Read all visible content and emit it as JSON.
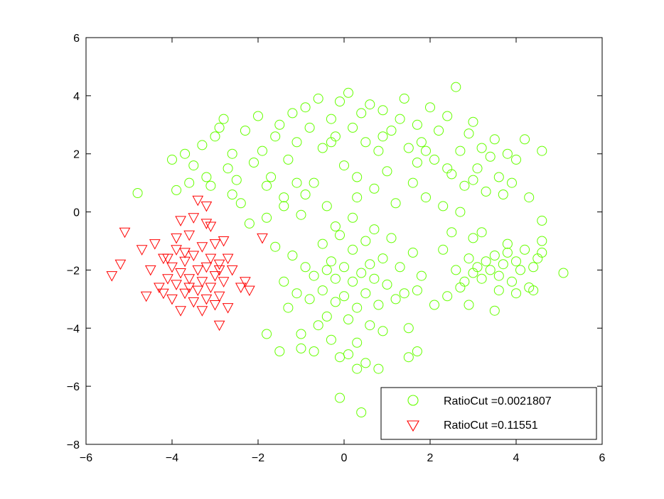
{
  "chart_data": {
    "type": "scatter",
    "title": "",
    "xlabel": "",
    "ylabel": "",
    "xlim": [
      -6,
      6
    ],
    "ylim": [
      -8,
      6
    ],
    "xticks": [
      -6,
      -4,
      -2,
      0,
      2,
      4,
      6
    ],
    "yticks": [
      -8,
      -6,
      -4,
      -2,
      0,
      2,
      4,
      6
    ],
    "xtick_labels": [
      "−6",
      "−4",
      "−2",
      "0",
      "2",
      "4",
      "6"
    ],
    "ytick_labels": [
      "−8",
      "−6",
      "−4",
      "−2",
      "0",
      "2",
      "4",
      "6"
    ],
    "grid": false,
    "legend_position": "bottom-right",
    "series": [
      {
        "name": "RatioCut =0.0021807",
        "marker": "circle",
        "color": "#66ff00",
        "points": [
          [
            -4.0,
            1.8
          ],
          [
            -4.8,
            0.65
          ],
          [
            -3.9,
            0.75
          ],
          [
            -3.7,
            2.0
          ],
          [
            -3.5,
            1.6
          ],
          [
            -3.3,
            2.3
          ],
          [
            -3.2,
            1.2
          ],
          [
            -3.0,
            2.6
          ],
          [
            -2.8,
            3.2
          ],
          [
            -2.6,
            2.0
          ],
          [
            -2.5,
            1.1
          ],
          [
            -2.4,
            0.3
          ],
          [
            -2.3,
            2.8
          ],
          [
            -2.2,
            -0.4
          ],
          [
            -2.1,
            1.7
          ],
          [
            -2.0,
            3.3
          ],
          [
            -1.9,
            2.1
          ],
          [
            -1.8,
            -0.2
          ],
          [
            -1.7,
            1.2
          ],
          [
            -1.6,
            2.6
          ],
          [
            -1.5,
            3.0
          ],
          [
            -1.4,
            0.5
          ],
          [
            -1.3,
            1.8
          ],
          [
            -1.2,
            3.4
          ],
          [
            -1.1,
            2.4
          ],
          [
            -1.0,
            -0.1
          ],
          [
            -0.9,
            3.6
          ],
          [
            -0.8,
            2.9
          ],
          [
            -0.7,
            1.0
          ],
          [
            -0.6,
            3.9
          ],
          [
            -0.5,
            2.2
          ],
          [
            -0.4,
            0.2
          ],
          [
            -0.3,
            3.2
          ],
          [
            -0.2,
            2.6
          ],
          [
            -0.1,
            3.8
          ],
          [
            0.0,
            1.6
          ],
          [
            0.1,
            4.1
          ],
          [
            0.2,
            2.9
          ],
          [
            0.3,
            0.5
          ],
          [
            0.4,
            3.4
          ],
          [
            0.5,
            2.4
          ],
          [
            0.6,
            3.7
          ],
          [
            0.7,
            0.8
          ],
          [
            0.8,
            2.1
          ],
          [
            0.9,
            3.5
          ],
          [
            1.0,
            1.4
          ],
          [
            1.1,
            2.8
          ],
          [
            1.2,
            0.3
          ],
          [
            1.3,
            3.2
          ],
          [
            1.4,
            3.9
          ],
          [
            1.5,
            2.2
          ],
          [
            1.6,
            1.0
          ],
          [
            1.7,
            3.0
          ],
          [
            1.8,
            2.4
          ],
          [
            1.9,
            0.5
          ],
          [
            2.0,
            3.6
          ],
          [
            2.1,
            1.8
          ],
          [
            2.2,
            2.8
          ],
          [
            2.3,
            0.2
          ],
          [
            2.4,
            3.3
          ],
          [
            2.5,
            1.3
          ],
          [
            2.6,
            4.3
          ],
          [
            2.7,
            2.1
          ],
          [
            2.8,
            0.9
          ],
          [
            2.9,
            2.7
          ],
          [
            3.0,
            3.1
          ],
          [
            3.1,
            1.5
          ],
          [
            3.2,
            2.2
          ],
          [
            3.3,
            0.7
          ],
          [
            3.4,
            1.9
          ],
          [
            3.5,
            2.5
          ],
          [
            3.6,
            1.2
          ],
          [
            3.7,
            0.6
          ],
          [
            3.8,
            2.0
          ],
          [
            3.9,
            1.0
          ],
          [
            4.0,
            1.8
          ],
          [
            4.2,
            2.5
          ],
          [
            4.3,
            0.5
          ],
          [
            4.6,
            2.1
          ],
          [
            -3.6,
            1.0
          ],
          [
            -3.1,
            0.9
          ],
          [
            -2.7,
            1.5
          ],
          [
            -2.9,
            2.9
          ],
          [
            -1.4,
            0.2
          ],
          [
            -0.9,
            0.6
          ],
          [
            0.3,
            1.2
          ],
          [
            1.7,
            1.7
          ],
          [
            2.4,
            1.5
          ],
          [
            3.0,
            1.1
          ],
          [
            2.7,
            0.0
          ],
          [
            -2.6,
            0.6
          ],
          [
            -1.8,
            0.9
          ],
          [
            -1.1,
            1.0
          ],
          [
            -0.3,
            2.4
          ],
          [
            0.9,
            2.6
          ],
          [
            1.9,
            2.1
          ],
          [
            -1.6,
            -1.2
          ],
          [
            -1.4,
            -2.4
          ],
          [
            -1.3,
            -3.3
          ],
          [
            -1.2,
            -1.5
          ],
          [
            -1.1,
            -2.8
          ],
          [
            -1.0,
            -4.2
          ],
          [
            -1.0,
            -4.7
          ],
          [
            -0.9,
            -1.9
          ],
          [
            -0.8,
            -3.0
          ],
          [
            -0.7,
            -2.2
          ],
          [
            -0.6,
            -3.9
          ],
          [
            -0.5,
            -1.1
          ],
          [
            -0.5,
            -2.7
          ],
          [
            -0.4,
            -3.6
          ],
          [
            -0.3,
            -1.7
          ],
          [
            -0.3,
            -4.4
          ],
          [
            -0.2,
            -2.3
          ],
          [
            -0.2,
            -3.1
          ],
          [
            -0.1,
            -0.8
          ],
          [
            -0.1,
            -5.0
          ],
          [
            0.0,
            -1.9
          ],
          [
            0.0,
            -2.9
          ],
          [
            0.1,
            -3.7
          ],
          [
            0.1,
            -4.9
          ],
          [
            0.2,
            -2.4
          ],
          [
            0.2,
            -1.3
          ],
          [
            0.3,
            -3.3
          ],
          [
            0.3,
            -4.5
          ],
          [
            0.4,
            -2.1
          ],
          [
            0.5,
            -2.8
          ],
          [
            0.5,
            -1.0
          ],
          [
            0.6,
            -3.9
          ],
          [
            0.7,
            -2.3
          ],
          [
            0.7,
            -0.6
          ],
          [
            0.8,
            -3.2
          ],
          [
            0.9,
            -1.6
          ],
          [
            0.9,
            -4.1
          ],
          [
            1.0,
            -2.5
          ],
          [
            1.1,
            -0.9
          ],
          [
            1.2,
            -3.0
          ],
          [
            1.3,
            -1.9
          ],
          [
            1.4,
            -2.8
          ],
          [
            1.5,
            -4.0
          ],
          [
            1.6,
            -1.4
          ],
          [
            1.7,
            -2.7
          ],
          [
            1.8,
            -2.2
          ],
          [
            0.3,
            -5.4
          ],
          [
            0.5,
            -5.2
          ],
          [
            0.8,
            -5.4
          ],
          [
            -0.1,
            -6.4
          ],
          [
            0.4,
            -6.9
          ],
          [
            -1.8,
            -4.2
          ],
          [
            -1.5,
            -4.8
          ],
          [
            -0.7,
            -4.8
          ],
          [
            1.5,
            -5.0
          ],
          [
            1.7,
            -4.8
          ],
          [
            0.2,
            -0.2
          ],
          [
            -0.2,
            -0.5
          ],
          [
            0.6,
            -1.8
          ],
          [
            -0.4,
            -2.0
          ],
          [
            2.3,
            -1.3
          ],
          [
            2.6,
            -2.0
          ],
          [
            2.8,
            -2.4
          ],
          [
            2.9,
            -1.6
          ],
          [
            3.0,
            -2.1
          ],
          [
            3.1,
            -1.9
          ],
          [
            3.2,
            -2.3
          ],
          [
            3.3,
            -1.7
          ],
          [
            3.4,
            -2.0
          ],
          [
            3.5,
            -1.5
          ],
          [
            3.6,
            -2.2
          ],
          [
            3.7,
            -1.8
          ],
          [
            3.8,
            -1.4
          ],
          [
            3.9,
            -2.4
          ],
          [
            4.0,
            -1.7
          ],
          [
            4.1,
            -2.0
          ],
          [
            4.2,
            -1.3
          ],
          [
            4.3,
            -2.6
          ],
          [
            4.4,
            -1.9
          ],
          [
            4.5,
            -1.6
          ],
          [
            4.6,
            -1.4
          ],
          [
            5.1,
            -2.1
          ],
          [
            4.6,
            -0.3
          ],
          [
            3.2,
            -0.7
          ],
          [
            2.5,
            -0.7
          ],
          [
            2.9,
            -3.2
          ],
          [
            3.5,
            -3.4
          ],
          [
            4.0,
            -2.8
          ],
          [
            2.1,
            -3.2
          ],
          [
            2.7,
            -2.6
          ],
          [
            3.0,
            -0.9
          ],
          [
            3.8,
            -1.1
          ],
          [
            4.6,
            -1.0
          ],
          [
            2.4,
            -2.9
          ],
          [
            3.6,
            -2.7
          ],
          [
            4.4,
            -2.7
          ]
        ]
      },
      {
        "name": "RatioCut =0.11551",
        "marker": "triangle-down",
        "color": "#ff0000",
        "points": [
          [
            -5.4,
            -2.2
          ],
          [
            -5.2,
            -1.8
          ],
          [
            -5.1,
            -0.7
          ],
          [
            -4.7,
            -1.3
          ],
          [
            -4.6,
            -2.9
          ],
          [
            -4.5,
            -2.0
          ],
          [
            -4.4,
            -1.1
          ],
          [
            -4.3,
            -2.6
          ],
          [
            -4.2,
            -1.6
          ],
          [
            -4.1,
            -2.3
          ],
          [
            -4.0,
            -3.0
          ],
          [
            -4.0,
            -1.9
          ],
          [
            -3.9,
            -2.5
          ],
          [
            -3.9,
            -1.3
          ],
          [
            -3.8,
            -3.4
          ],
          [
            -3.8,
            -2.1
          ],
          [
            -3.7,
            -1.7
          ],
          [
            -3.7,
            -2.8
          ],
          [
            -3.6,
            -0.8
          ],
          [
            -3.6,
            -2.3
          ],
          [
            -3.5,
            -1.5
          ],
          [
            -3.5,
            -3.1
          ],
          [
            -3.4,
            -2.0
          ],
          [
            -3.4,
            -2.7
          ],
          [
            -3.3,
            -1.2
          ],
          [
            -3.3,
            -2.4
          ],
          [
            -3.2,
            -0.4
          ],
          [
            -3.2,
            -1.9
          ],
          [
            -3.2,
            -3.0
          ],
          [
            -3.1,
            -1.6
          ],
          [
            -3.1,
            -2.6
          ],
          [
            -3.0,
            -1.1
          ],
          [
            -3.0,
            -2.2
          ],
          [
            -3.0,
            -3.2
          ],
          [
            -2.9,
            -1.8
          ],
          [
            -2.9,
            -2.9
          ],
          [
            -2.8,
            -1.0
          ],
          [
            -2.8,
            -2.4
          ],
          [
            -2.7,
            -3.3
          ],
          [
            -2.7,
            -1.6
          ],
          [
            -2.6,
            -2.0
          ],
          [
            -2.4,
            -2.6
          ],
          [
            -2.2,
            -2.7
          ],
          [
            -2.3,
            -2.4
          ],
          [
            -1.9,
            -0.9
          ],
          [
            -2.9,
            -3.9
          ],
          [
            -3.4,
            0.4
          ],
          [
            -3.2,
            0.2
          ],
          [
            -3.5,
            -0.2
          ],
          [
            -3.9,
            -0.9
          ],
          [
            -4.2,
            -2.8
          ],
          [
            -3.6,
            -2.6
          ],
          [
            -3.3,
            -3.4
          ],
          [
            -2.9,
            -2.0
          ],
          [
            -3.7,
            -1.4
          ],
          [
            -4.1,
            -1.6
          ],
          [
            -3.8,
            -0.3
          ],
          [
            -3.1,
            -0.5
          ]
        ]
      }
    ]
  }
}
